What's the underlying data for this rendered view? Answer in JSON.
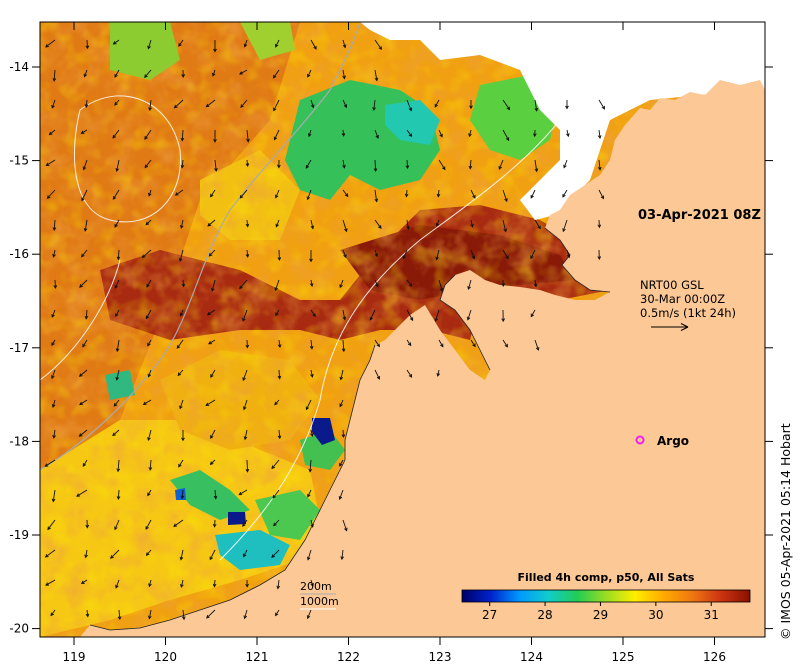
{
  "map": {
    "timestamp": "03-Apr-2021 08Z",
    "current_model": "NRT00 GSL",
    "current_time": "30-Mar 00:00Z",
    "vector_scale": "0.5m/s (1kt 24h)",
    "argo_label": "Argo",
    "isobath_200": "200m",
    "isobath_1000": "1000m",
    "credit": "IMOS 05-Apr-2021 05:14 Hobart",
    "credit_symbol": "©",
    "lon_ticks": [
      "119",
      "120",
      "121",
      "122",
      "123",
      "124",
      "125",
      "126"
    ],
    "lat_ticks": [
      "-14",
      "-15",
      "-16",
      "-17",
      "-18",
      "-19",
      "-20"
    ],
    "colorbar": {
      "title": "Filled 4h comp, p50, All Sats",
      "min": 26.5,
      "max": 31.7,
      "ticks": [
        "27",
        "28",
        "29",
        "30",
        "31"
      ],
      "colors": [
        "#000066",
        "#0022cc",
        "#0099ff",
        "#11cccc",
        "#22cc55",
        "#99dd22",
        "#ffee00",
        "#ffaa00",
        "#ee7711",
        "#cc3311",
        "#881100"
      ]
    },
    "colors": {
      "land": "#fcc896",
      "cloud": "#ffffff",
      "argo": "#ee22ee"
    }
  }
}
